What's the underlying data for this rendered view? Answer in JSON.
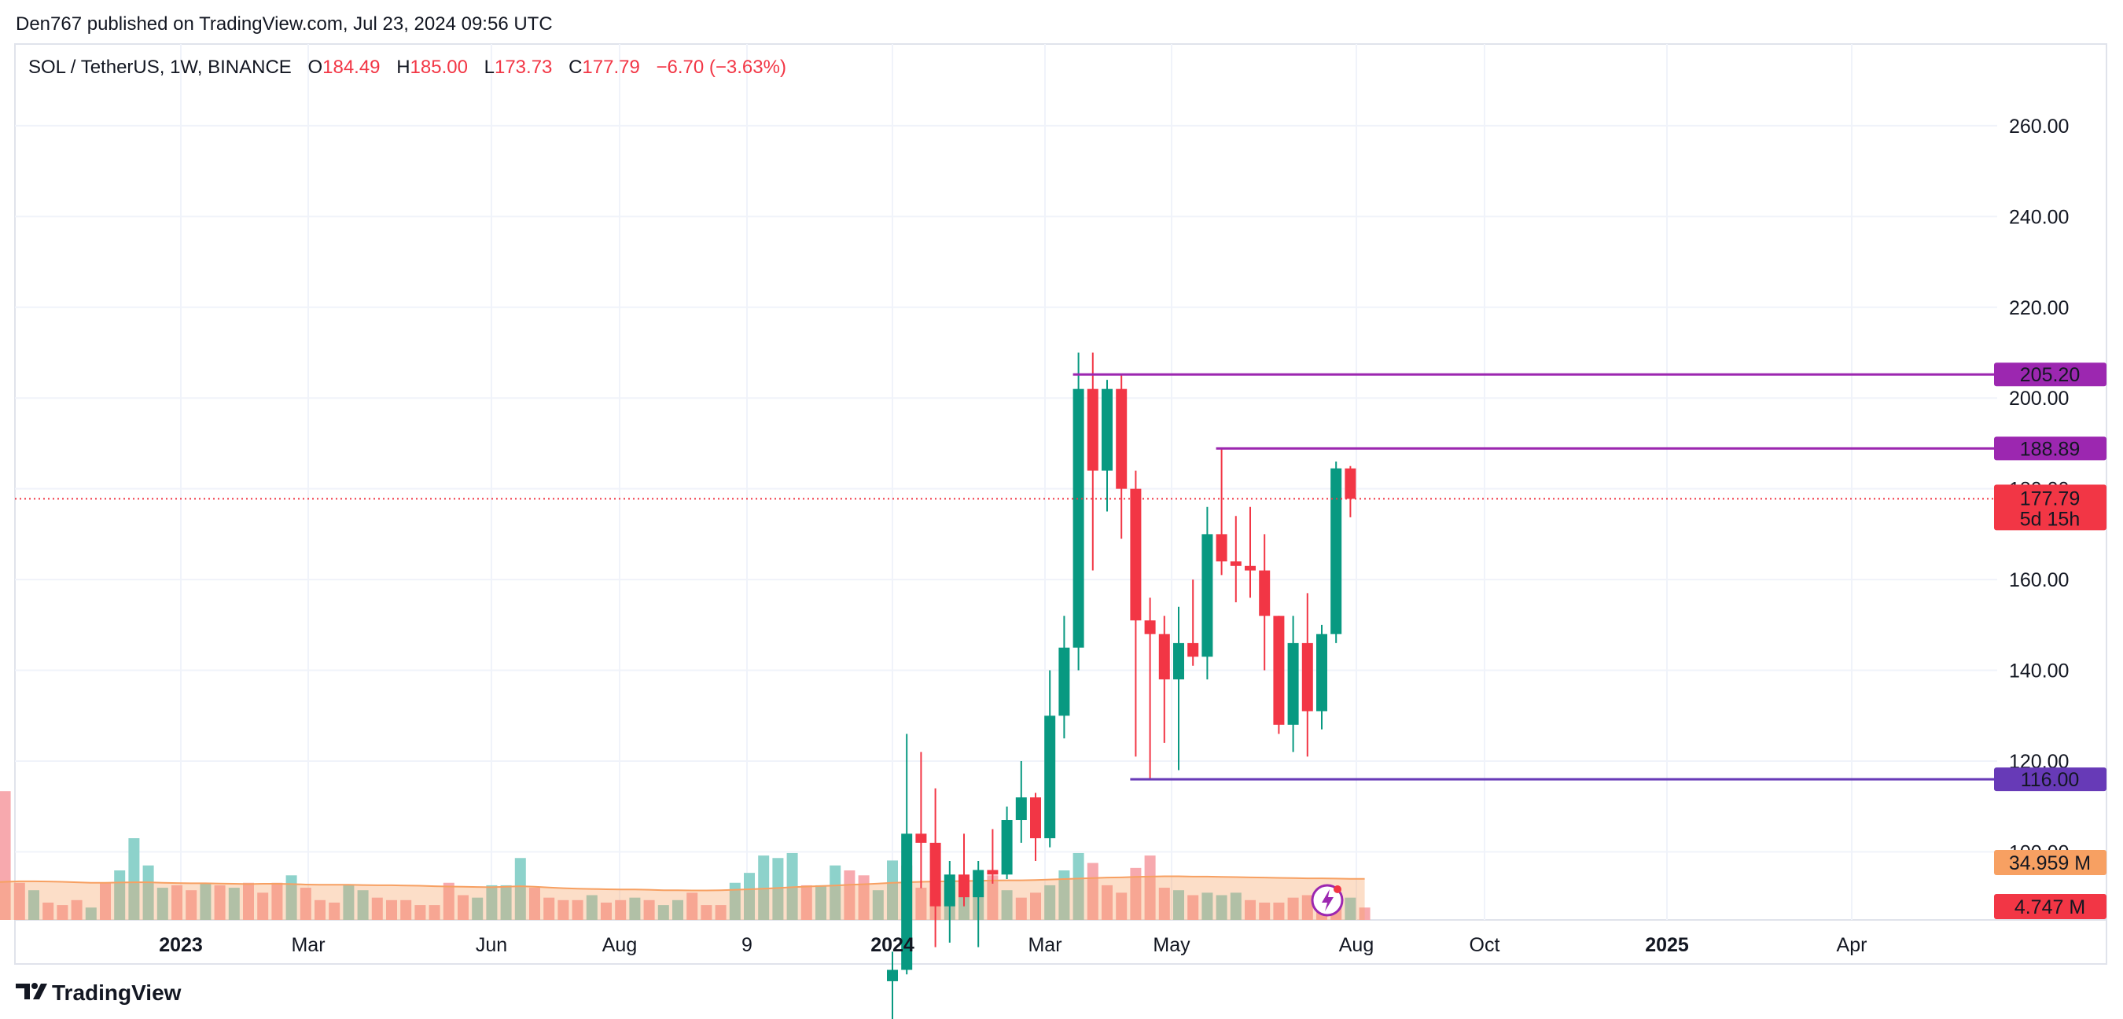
{
  "header": {
    "publisher": "Den767 published on TradingView.com, Jul 23, 2024 09:56 UTC"
  },
  "legend": {
    "symbol": "SOL / TetherUS, 1W, BINANCE",
    "open_label": "O",
    "open": "184.49",
    "high_label": "H",
    "high": "185.00",
    "low_label": "L",
    "low": "173.73",
    "close_label": "C",
    "close": "177.79",
    "change": "−6.70 (−3.63%)"
  },
  "footer": {
    "brand": "TradingView"
  },
  "colors": {
    "up": "#089981",
    "down": "#F23645",
    "up_volume": "#8DD2CB",
    "down_volume": "#F7A9AE",
    "level_line": "#9C27B0",
    "support_line": "#673AB7",
    "volume_ma": "#F7A062",
    "last_price": "#F23645",
    "grid": "#F0F3FA"
  },
  "chart_data": {
    "type": "candlestick",
    "interval": "1W",
    "y_range": [
      85,
      278
    ],
    "y_ticks": [
      "100.00",
      "120.00",
      "140.00",
      "160.00",
      "180.00",
      "200.00",
      "220.00",
      "240.00",
      "260.00"
    ],
    "x_labels": [
      "2023",
      "Mar",
      "Jun",
      "Aug",
      "9",
      "2024",
      "Mar",
      "May",
      "Aug",
      "Oct",
      "2025",
      "Apr"
    ],
    "x_labels_bold": [
      "2023",
      "2024",
      "2025"
    ],
    "grid": true,
    "candles": [
      {
        "t": "2023-12-11",
        "o": 71.5,
        "h": 78.0,
        "l": 62.0,
        "c": 74.0
      },
      {
        "t": "2023-12-18",
        "o": 74.0,
        "h": 126.0,
        "l": 73.0,
        "c": 104.0
      },
      {
        "t": "2023-12-25",
        "o": 104.0,
        "h": 122.0,
        "l": 92.0,
        "c": 102.0
      },
      {
        "t": "2024-01-01",
        "o": 102.0,
        "h": 114.0,
        "l": 79.0,
        "c": 88.0
      },
      {
        "t": "2024-01-08",
        "o": 88.0,
        "h": 98.0,
        "l": 80.0,
        "c": 95.0
      },
      {
        "t": "2024-01-15",
        "o": 95.0,
        "h": 104.0,
        "l": 88.0,
        "c": 90.0
      },
      {
        "t": "2024-01-22",
        "o": 90.0,
        "h": 98.0,
        "l": 79.0,
        "c": 96.0
      },
      {
        "t": "2024-01-29",
        "o": 96.0,
        "h": 105.0,
        "l": 93.0,
        "c": 95.0
      },
      {
        "t": "2024-02-05",
        "o": 95.0,
        "h": 110.0,
        "l": 94.0,
        "c": 107.0
      },
      {
        "t": "2024-02-12",
        "o": 107.0,
        "h": 120.0,
        "l": 102.0,
        "c": 112.0
      },
      {
        "t": "2024-02-19",
        "o": 112.0,
        "h": 113.0,
        "l": 98.0,
        "c": 103.0
      },
      {
        "t": "2024-02-26",
        "o": 103.0,
        "h": 140.0,
        "l": 101.0,
        "c": 130.0
      },
      {
        "t": "2024-03-04",
        "o": 130.0,
        "h": 152.0,
        "l": 125.0,
        "c": 145.0
      },
      {
        "t": "2024-03-11",
        "o": 145.0,
        "h": 210.0,
        "l": 140.0,
        "c": 202.0
      },
      {
        "t": "2024-03-18",
        "o": 202.0,
        "h": 210.0,
        "l": 162.0,
        "c": 184.0
      },
      {
        "t": "2024-03-25",
        "o": 184.0,
        "h": 204.0,
        "l": 175.0,
        "c": 202.0
      },
      {
        "t": "2024-04-01",
        "o": 202.0,
        "h": 205.0,
        "l": 169.0,
        "c": 180.0
      },
      {
        "t": "2024-04-08",
        "o": 180.0,
        "h": 184.0,
        "l": 121.0,
        "c": 151.0
      },
      {
        "t": "2024-04-15",
        "o": 151.0,
        "h": 156.0,
        "l": 116.0,
        "c": 148.0
      },
      {
        "t": "2024-04-22",
        "o": 148.0,
        "h": 152.0,
        "l": 124.0,
        "c": 138.0
      },
      {
        "t": "2024-04-29",
        "o": 138.0,
        "h": 154.0,
        "l": 118.0,
        "c": 146.0
      },
      {
        "t": "2024-05-06",
        "o": 146.0,
        "h": 160.0,
        "l": 141.0,
        "c": 143.0
      },
      {
        "t": "2024-05-13",
        "o": 143.0,
        "h": 176.0,
        "l": 138.0,
        "c": 170.0
      },
      {
        "t": "2024-05-20",
        "o": 170.0,
        "h": 188.9,
        "l": 161.0,
        "c": 164.0
      },
      {
        "t": "2024-05-27",
        "o": 164.0,
        "h": 174.0,
        "l": 155.0,
        "c": 163.0
      },
      {
        "t": "2024-06-03",
        "o": 163.0,
        "h": 176.0,
        "l": 156.0,
        "c": 162.0
      },
      {
        "t": "2024-06-10",
        "o": 162.0,
        "h": 170.0,
        "l": 140.0,
        "c": 152.0
      },
      {
        "t": "2024-06-17",
        "o": 152.0,
        "h": 152.0,
        "l": 126.0,
        "c": 128.0
      },
      {
        "t": "2024-06-24",
        "o": 128.0,
        "h": 152.0,
        "l": 122.0,
        "c": 146.0
      },
      {
        "t": "2024-07-01",
        "o": 146.0,
        "h": 157.0,
        "l": 121.0,
        "c": 131.0
      },
      {
        "t": "2024-07-08",
        "o": 131.0,
        "h": 150.0,
        "l": 127.0,
        "c": 148.0
      },
      {
        "t": "2024-07-15",
        "o": 148.0,
        "h": 186.0,
        "l": 146.0,
        "c": 184.5
      },
      {
        "t": "2024-07-22",
        "o": 184.49,
        "h": 185.0,
        "l": 173.73,
        "c": 177.79
      }
    ],
    "volume_bars": [
      {
        "dir": "down",
        "v": 5.0
      },
      {
        "dir": "up",
        "v": 8.0
      },
      {
        "dir": "down",
        "v": 10.0
      },
      {
        "dir": "down",
        "v": 12.0
      },
      {
        "dir": "down",
        "v": 52.0
      },
      {
        "dir": "down",
        "v": 15.0
      },
      {
        "dir": "up",
        "v": 12.0
      },
      {
        "dir": "down",
        "v": 7.0
      },
      {
        "dir": "down",
        "v": 6.0
      },
      {
        "dir": "down",
        "v": 8.0
      },
      {
        "dir": "up",
        "v": 5.0
      },
      {
        "dir": "down",
        "v": 15.0
      },
      {
        "dir": "up",
        "v": 20.0
      },
      {
        "dir": "up",
        "v": 33.0
      },
      {
        "dir": "up",
        "v": 22.0
      },
      {
        "dir": "up",
        "v": 13.0
      },
      {
        "dir": "down",
        "v": 14.0
      },
      {
        "dir": "down",
        "v": 12.0
      },
      {
        "dir": "up",
        "v": 15.0
      },
      {
        "dir": "down",
        "v": 14.0
      },
      {
        "dir": "up",
        "v": 13.0
      },
      {
        "dir": "down",
        "v": 15.0
      },
      {
        "dir": "down",
        "v": 11.0
      },
      {
        "dir": "down",
        "v": 15.0
      },
      {
        "dir": "up",
        "v": 18.0
      },
      {
        "dir": "down",
        "v": 13.0
      },
      {
        "dir": "down",
        "v": 8.0
      },
      {
        "dir": "down",
        "v": 7.0
      },
      {
        "dir": "up",
        "v": 14.0
      },
      {
        "dir": "up",
        "v": 12.0
      },
      {
        "dir": "down",
        "v": 9.0
      },
      {
        "dir": "down",
        "v": 8.0
      },
      {
        "dir": "down",
        "v": 8.0
      },
      {
        "dir": "down",
        "v": 6.0
      },
      {
        "dir": "down",
        "v": 6.0
      },
      {
        "dir": "down",
        "v": 15.0
      },
      {
        "dir": "down",
        "v": 10.0
      },
      {
        "dir": "up",
        "v": 9.0
      },
      {
        "dir": "up",
        "v": 14.0
      },
      {
        "dir": "up",
        "v": 14.0
      },
      {
        "dir": "up",
        "v": 25.0
      },
      {
        "dir": "down",
        "v": 13.0
      },
      {
        "dir": "down",
        "v": 9.0
      },
      {
        "dir": "down",
        "v": 8.0
      },
      {
        "dir": "down",
        "v": 8.0
      },
      {
        "dir": "up",
        "v": 10.0
      },
      {
        "dir": "down",
        "v": 7.0
      },
      {
        "dir": "down",
        "v": 8.0
      },
      {
        "dir": "up",
        "v": 9.0
      },
      {
        "dir": "down",
        "v": 8.0
      },
      {
        "dir": "up",
        "v": 6.0
      },
      {
        "dir": "up",
        "v": 8.0
      },
      {
        "dir": "down",
        "v": 11.0
      },
      {
        "dir": "down",
        "v": 6.0
      },
      {
        "dir": "down",
        "v": 6.0
      },
      {
        "dir": "up",
        "v": 15.0
      },
      {
        "dir": "up",
        "v": 19.0
      },
      {
        "dir": "up",
        "v": 26.0
      },
      {
        "dir": "up",
        "v": 25.0
      },
      {
        "dir": "up",
        "v": 27.0
      },
      {
        "dir": "down",
        "v": 14.0
      },
      {
        "dir": "up",
        "v": 14.0
      },
      {
        "dir": "up",
        "v": 22.0
      },
      {
        "dir": "down",
        "v": 20.0
      },
      {
        "dir": "down",
        "v": 18.0
      },
      {
        "dir": "up",
        "v": 12.0
      },
      {
        "dir": "up",
        "v": 24.0
      },
      {
        "dir": "down",
        "v": 22.0
      },
      {
        "dir": "down",
        "v": 13.0
      },
      {
        "dir": "down",
        "v": 11.0
      },
      {
        "dir": "up",
        "v": 14.0
      },
      {
        "dir": "up",
        "v": 10.0
      },
      {
        "dir": "up",
        "v": 14.0
      },
      {
        "dir": "down",
        "v": 18.0
      },
      {
        "dir": "up",
        "v": 12.0
      },
      {
        "dir": "down",
        "v": 9.0
      },
      {
        "dir": "down",
        "v": 11.0
      },
      {
        "dir": "up",
        "v": 14.0
      },
      {
        "dir": "up",
        "v": 20.0
      },
      {
        "dir": "up",
        "v": 27.0
      },
      {
        "dir": "down",
        "v": 23.0
      },
      {
        "dir": "down",
        "v": 14.0
      },
      {
        "dir": "down",
        "v": 11.0
      },
      {
        "dir": "down",
        "v": 21.0
      },
      {
        "dir": "down",
        "v": 26.0
      },
      {
        "dir": "down",
        "v": 13.0
      },
      {
        "dir": "up",
        "v": 12.0
      },
      {
        "dir": "down",
        "v": 10.0
      },
      {
        "dir": "up",
        "v": 11.0
      },
      {
        "dir": "up",
        "v": 10.0
      },
      {
        "dir": "up",
        "v": 11.0
      },
      {
        "dir": "down",
        "v": 8.0
      },
      {
        "dir": "down",
        "v": 7.0
      },
      {
        "dir": "down",
        "v": 7.0
      },
      {
        "dir": "down",
        "v": 9.0
      },
      {
        "dir": "down",
        "v": 10.0
      },
      {
        "dir": "down",
        "v": 11.0
      },
      {
        "dir": "down",
        "v": 9.0
      },
      {
        "dir": "up",
        "v": 9.0
      },
      {
        "dir": "down",
        "v": 5.0
      }
    ],
    "volume_ma": [
      14.5,
      14.7,
      15.0,
      15.2,
      15.4,
      15.6,
      15.6,
      15.5,
      15.4,
      15.2,
      15.0,
      15.0,
      15.1,
      15.2,
      15.2,
      15.0,
      14.9,
      14.8,
      14.8,
      14.7,
      14.6,
      14.5,
      14.6,
      14.6,
      14.5,
      14.3,
      14.2,
      14.2,
      14.2,
      14.1,
      14.0,
      14.0,
      13.9,
      13.8,
      13.6,
      13.5,
      13.4,
      13.3,
      13.2,
      13.4,
      13.6,
      13.4,
      13.1,
      12.8,
      12.6,
      12.5,
      12.4,
      12.3,
      12.3,
      12.2,
      12.0,
      12.0,
      11.9,
      11.9,
      12.0,
      12.2,
      12.4,
      12.6,
      12.9,
      13.2,
      13.5,
      13.7,
      13.9,
      14.2,
      14.4,
      14.7,
      15.0,
      15.2,
      15.4,
      15.5,
      15.6,
      15.7,
      15.8,
      15.9,
      16.0,
      16.0,
      16.1,
      16.3,
      16.5,
      16.7,
      16.9,
      17.1,
      17.2,
      17.4,
      17.5,
      17.6,
      17.6,
      17.5,
      17.5,
      17.4,
      17.3,
      17.2,
      17.1,
      17.0,
      16.9,
      16.8,
      16.8,
      16.7,
      16.6,
      16.6
    ],
    "horizontal_levels": [
      {
        "value": 205.2,
        "label": "205.20",
        "from": "2024-03-11"
      },
      {
        "value": 188.89,
        "label": "188.89",
        "from": "2024-05-20"
      },
      {
        "value": 116.0,
        "label": "116.00",
        "from": "2024-04-08"
      }
    ],
    "last_price": {
      "value": 177.79,
      "label": "177.79",
      "countdown": "5d 15h"
    },
    "volume_ma_label": "34.959 M",
    "volume_label": "4.747 M"
  }
}
